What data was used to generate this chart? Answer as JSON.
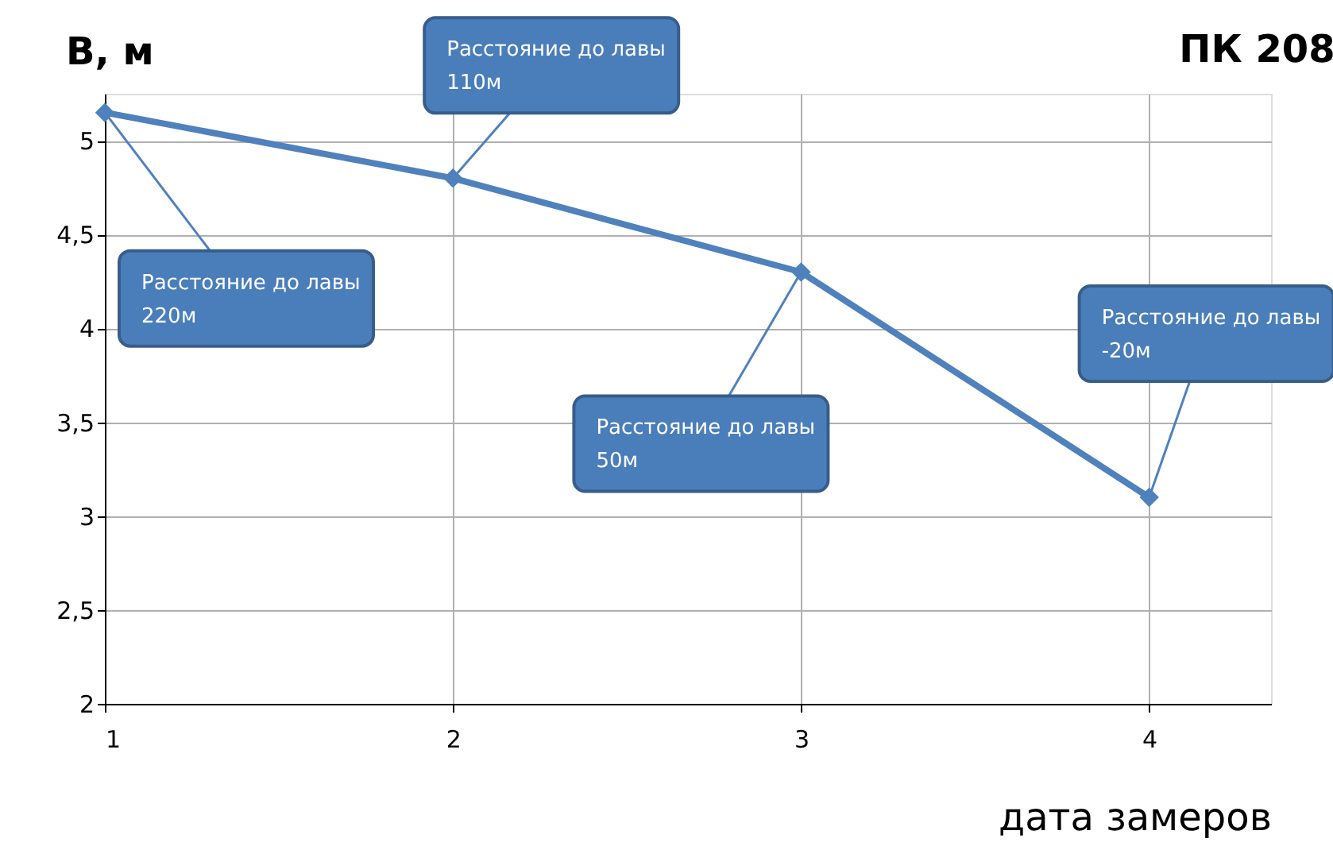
{
  "chart_data": {
    "type": "line",
    "title": "ПК 208",
    "ylabel": "B, м",
    "xlabel": "дата замеров",
    "x": [
      1,
      2,
      3,
      4
    ],
    "series": [
      {
        "color": "#4f81bd",
        "values": [
          5.15,
          4.8,
          4.3,
          3.1
        ]
      }
    ],
    "xlim": [
      1,
      4.35
    ],
    "xticks": [
      1,
      2,
      3,
      4
    ],
    "ylim": [
      2,
      5.25
    ],
    "yticks": [
      2,
      {
        "value": 2.5,
        "label": "2,5"
      },
      3,
      {
        "value": 3.5,
        "label": "3,5"
      },
      4,
      {
        "value": 4.5,
        "label": "4,5"
      },
      5
    ],
    "grid": true,
    "marker": "diamond",
    "line_style": "solid",
    "annotations": [
      {
        "text": "Расстояние до лавы 220м",
        "x": 1,
        "y": 5.15
      },
      {
        "text": "Расстояние до лавы 110м",
        "x": 2,
        "y": 4.8
      },
      {
        "text": "Расстояние до лавы 50м",
        "x": 3,
        "y": 4.3
      },
      {
        "text": "Расстояние до лавы -20м",
        "x": 4,
        "y": 3.1
      }
    ]
  }
}
